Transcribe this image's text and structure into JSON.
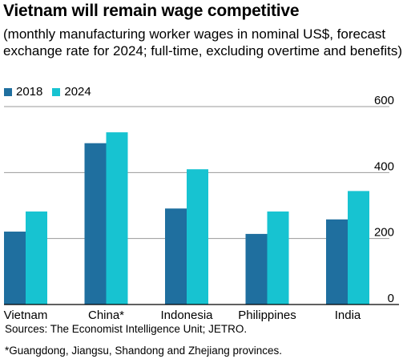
{
  "title": "Vietnam will remain wage competitive",
  "subtitle": "(monthly manufacturing worker wages in nominal US$, forecast exchange rate for 2024; full-time, excluding overtime and benefits)",
  "source": "Sources: The Economist Intelligence Unit; JETRO.",
  "footnote": "*Guangdong, Jiangsu, Shandong and Zhejiang provinces.",
  "colors": {
    "s2018": "#1f6f9f",
    "s2024": "#17c3d1",
    "axis": "#000000",
    "grid": "#9a9a9a"
  },
  "chart_data": {
    "type": "bar",
    "categories": [
      "Vietnam",
      "China*",
      "Indonesia",
      "Philippines",
      "India"
    ],
    "series": [
      {
        "name": "2018",
        "values": [
          221,
          489,
          291,
          214,
          258
        ]
      },
      {
        "name": "2024",
        "values": [
          282,
          522,
          410,
          282,
          344
        ]
      }
    ],
    "ylim": [
      0,
      600
    ],
    "yticks": [
      0,
      200,
      400,
      600
    ],
    "ytick_labels": [
      "0",
      "200",
      "400",
      "600"
    ],
    "y_axis_side": "right",
    "grid": true,
    "legend_position": "top-left"
  }
}
